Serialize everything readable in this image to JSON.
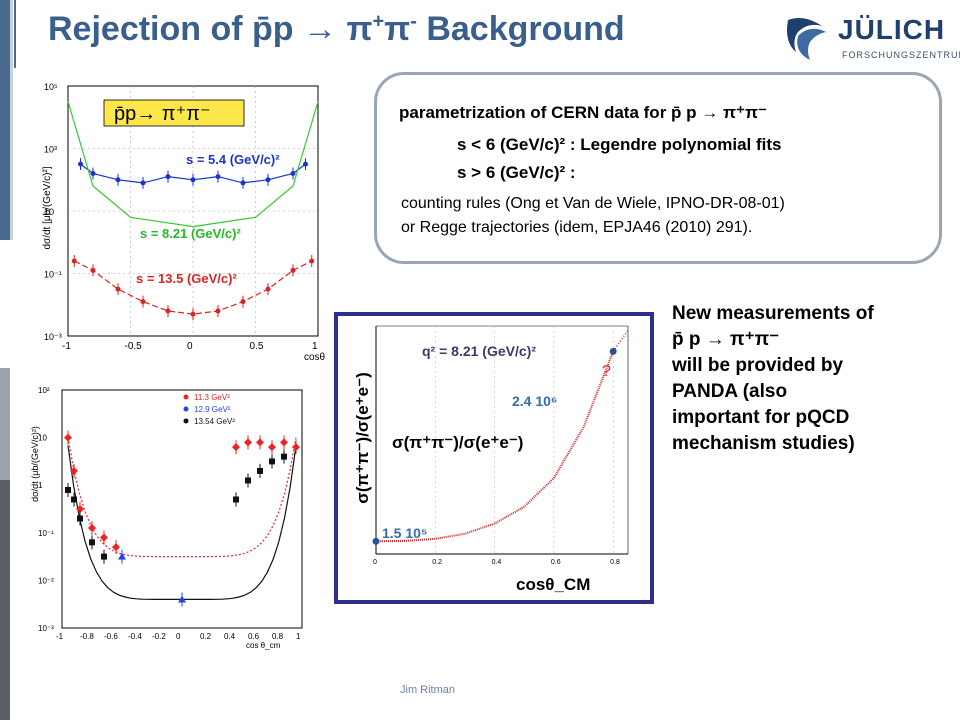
{
  "slide": {
    "title_main": "Rejection of p̄p → π",
    "title_sup1": "+",
    "title_mid": "π",
    "title_sup2": "-",
    "title_end": "  Background",
    "footer": "Jim Ritman"
  },
  "logo": {
    "name": "JÜLICH",
    "sub": "FORSCHUNGSZENTRUM"
  },
  "param": {
    "line1": "parametrization of CERN data for p̄ p → π⁺π⁻",
    "line2": "s < 6 (GeV/c)² : Legendre polynomial fits",
    "line3": "s > 6 (GeV/c)²  :",
    "line4": "counting rules (Ong et Van de Wiele, IPNO-DR-08-01)",
    "line5": "or Regge trajectories (idem, EPJA46 (2010) 291)."
  },
  "new_measurements": {
    "line1": "New measurements of",
    "line2": "p̄ p → π⁺π⁻",
    "line3": "will be provided by",
    "line4": "PANDA  (also",
    "line5": "important for pQCD",
    "line6": "mechanism studies)"
  },
  "chart_data": [
    {
      "type": "scatter",
      "label_box": "p̄p→ π⁺π⁻",
      "ylabel": "dσ/dt [μb/(GeV/c)²]",
      "xlabel": "cosθ",
      "xlim": [
        -1,
        1
      ],
      "ylim_log10": [
        -3,
        5
      ],
      "x_ticks": [
        "-1",
        "-0.5",
        "0",
        "0.5",
        "1"
      ],
      "y_ticks": [
        "10⁻³",
        "10⁻¹",
        "10",
        "10³",
        "10⁵"
      ],
      "series": [
        {
          "name": "s = 5.4 (GeV/c)²",
          "color": "#1a33cc",
          "x": [
            -0.9,
            -0.8,
            -0.6,
            -0.4,
            -0.2,
            0,
            0.2,
            0.4,
            0.6,
            0.8,
            0.9
          ],
          "y_log10": [
            2.5,
            2.2,
            2.0,
            1.9,
            2.1,
            2.0,
            2.1,
            1.9,
            2.0,
            2.2,
            2.5
          ]
        },
        {
          "name": "s = 8.21 (GeV/c)²",
          "color": "#33cc33",
          "x": [
            -1,
            -0.8,
            -0.5,
            0,
            0.5,
            0.8,
            1
          ],
          "y_log10": [
            4.5,
            1.8,
            0.8,
            0.5,
            0.8,
            1.8,
            4.5
          ]
        },
        {
          "name": "s = 13.5 (GeV/c)²",
          "color": "#dd2222",
          "x": [
            -0.95,
            -0.8,
            -0.6,
            -0.4,
            -0.2,
            0,
            0.2,
            0.4,
            0.6,
            0.8,
            0.95
          ],
          "y_log10": [
            -0.6,
            -0.9,
            -1.5,
            -1.9,
            -2.2,
            -2.3,
            -2.2,
            -1.9,
            -1.5,
            -0.9,
            -0.6
          ]
        }
      ]
    },
    {
      "type": "scatter",
      "ylabel": "dσ/dt (μb/(GeV/c)²)",
      "xlabel": "cos θ_cm",
      "xlim": [
        -1,
        1
      ],
      "ylim_log10": [
        -3,
        2
      ],
      "x_ticks": [
        "-1",
        "-0.8",
        "-0.6",
        "-0.4",
        "-0.2",
        "0",
        "0.2",
        "0.4",
        "0.6",
        "0.8",
        "1"
      ],
      "y_ticks": [
        "10²",
        "10",
        "1",
        "10⁻¹",
        "10⁻²",
        "10⁻³"
      ],
      "series": [
        {
          "name": "11.3  GeV²",
          "color": "#ee2222",
          "x": [
            -0.95,
            -0.9,
            -0.85,
            -0.75,
            -0.65,
            -0.55,
            0.45,
            0.55,
            0.65,
            0.75,
            0.85,
            0.95
          ],
          "y_log10": [
            1.0,
            0.3,
            -0.5,
            -0.9,
            -1.1,
            -1.3,
            0.8,
            0.9,
            0.9,
            0.8,
            0.9,
            0.8
          ]
        },
        {
          "name": "12.9 GeV²",
          "color": "#2244ee",
          "x": [
            -0.5,
            0
          ],
          "y_log10": [
            -1.5,
            -2.4
          ]
        },
        {
          "name": "13.54 GeV²",
          "color": "#111111",
          "x": [
            -0.95,
            -0.9,
            -0.85,
            -0.75,
            -0.65,
            0.45,
            0.55,
            0.65,
            0.75,
            0.85
          ],
          "y_log10": [
            -0.1,
            -0.3,
            -0.7,
            -1.2,
            -1.5,
            -0.3,
            0.1,
            0.3,
            0.5,
            0.6
          ]
        }
      ]
    },
    {
      "type": "line",
      "title": "q² = 8.21 (GeV/c)²",
      "ylabel": "σ(π⁺π⁻)/σ(e⁺e⁻)",
      "xlabel": "cosθ_CM",
      "series_label": "σ(π⁺π⁻)/σ(e⁺e⁻)",
      "x_ticks": [
        "0",
        "0.2",
        "0.4",
        "0.6",
        "0.8"
      ],
      "xlim": [
        0,
        0.85
      ],
      "annotations": [
        "1.5  10⁵",
        "2.4  10⁶",
        "?"
      ],
      "series": [
        {
          "name": "",
          "color": "#dd2222",
          "x": [
            0,
            0.1,
            0.2,
            0.3,
            0.4,
            0.5,
            0.6,
            0.7,
            0.8
          ],
          "y": [
            150000,
            155000,
            180000,
            240000,
            360000,
            560000,
            900000,
            1500000,
            2400000
          ]
        }
      ]
    }
  ]
}
